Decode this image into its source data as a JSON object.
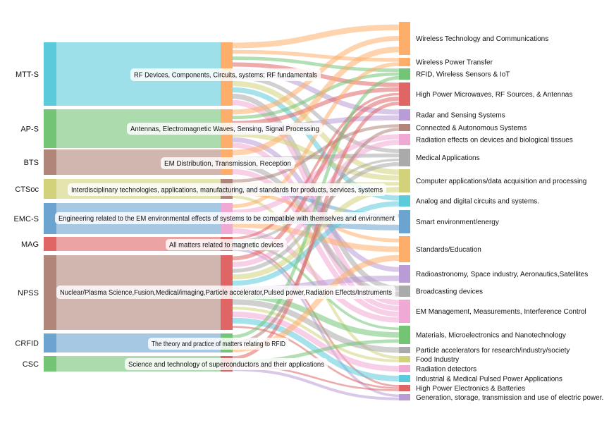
{
  "sources": [
    {
      "key": "MTT-S",
      "label": "MTT-S",
      "desc": "RF Devices, Components, Circuits, systems; RF fundamentals",
      "color": "#5bcbdb"
    },
    {
      "key": "AP-S",
      "label": "AP-S",
      "desc": "Antennas, Electromagnetic Waves, Sensing, Signal Processing",
      "color": "#74c476"
    },
    {
      "key": "BTS",
      "label": "BTS",
      "desc": "EM Distribution, Transmission, Reception",
      "color": "#b0857a"
    },
    {
      "key": "CTSoc",
      "label": "CTSoc",
      "desc": "Interdisciplinary technologies, applications, manufacturing, and standards for products, services, systems",
      "color": "#d2d27a"
    },
    {
      "key": "EMC-S",
      "label": "EMC-S",
      "desc": "Engineering related to the EM environmental effects of systems to be compatible with themselves and environment",
      "color": "#6aa4cf"
    },
    {
      "key": "MAG",
      "label": "MAG",
      "desc": "All matters related to magnetic devices",
      "color": "#e06666"
    },
    {
      "key": "NPSS",
      "label": "NPSS",
      "desc": "Nuclear/Plasma Science,Fusion,Medical/imaging,Particle accelerator,Pulsed power,Radiation Effects/Instruments",
      "color": "#b0857a"
    },
    {
      "key": "CRFID",
      "label": "CRFID",
      "desc": "The theory and practice of matters relating to RFID",
      "color": "#6aa4cf"
    },
    {
      "key": "CSC",
      "label": "CSC",
      "desc": "Science and technology of superconductors and their applications",
      "color": "#74c476"
    }
  ],
  "targets": [
    {
      "label": "Wireless Technology and Communications",
      "color": "#fdae6b"
    },
    {
      "label": "Wireless Power Transfer",
      "color": "#fdae6b"
    },
    {
      "label": "RFID, Wireless Sensors & IoT",
      "color": "#74c476"
    },
    {
      "label": "High Power Microwaves, RF Sources, & Antennas",
      "color": "#e06666"
    },
    {
      "label": "Radar and Sensing Systems",
      "color": "#b99bd6"
    },
    {
      "label": "Connected & Autonomous Systems",
      "color": "#b0857a"
    },
    {
      "label": "Radiation effects on devices and biological tissues",
      "color": "#f0a8d4"
    },
    {
      "label": "Medical Applications",
      "color": "#aaaaaa"
    },
    {
      "label": "Computer applications/data acquisition and processing",
      "color": "#d2d27a"
    },
    {
      "label": "Analog and digital circuits and systems.",
      "color": "#5bcbdb"
    },
    {
      "label": "Smart environment/energy",
      "color": "#6aa4cf"
    },
    {
      "label": "Standards/Education",
      "color": "#fdae6b"
    },
    {
      "label": "Radioastronomy, Space industry, Aeronautics,Satellites",
      "color": "#b99bd6"
    },
    {
      "label": "Broadcasting devices",
      "color": "#aaaaaa"
    },
    {
      "label": "EM Management, Measurements, Interference Control",
      "color": "#f0a8d4"
    },
    {
      "label": "Materials, Microelectronics and Nanotechnology",
      "color": "#74c476"
    },
    {
      "label": "Particle accelerators for research/industry/society",
      "color": "#aaaaaa"
    },
    {
      "label": "Food Industry",
      "color": "#d2d27a"
    },
    {
      "label": "Radiation detectors",
      "color": "#f0a8d4"
    },
    {
      "label": "Industrial & Medical Pulsed Power Applications",
      "color": "#5bcbdb"
    },
    {
      "label": "High Power Electronics & Batteries",
      "color": "#e06666"
    },
    {
      "label": "Generation, storage, transmission and use of electric power.",
      "color": "#b99bd6"
    }
  ],
  "links": [
    {
      "s": 0,
      "t": 0,
      "c": "#fdae6b"
    },
    {
      "s": 0,
      "t": 1,
      "c": "#fdae6b"
    },
    {
      "s": 0,
      "t": 2,
      "c": "#74c476"
    },
    {
      "s": 0,
      "t": 3,
      "c": "#e06666"
    },
    {
      "s": 0,
      "t": 4,
      "c": "#b99bd6"
    },
    {
      "s": 0,
      "t": 7,
      "c": "#aaaaaa"
    },
    {
      "s": 0,
      "t": 8,
      "c": "#d2d27a"
    },
    {
      "s": 0,
      "t": 9,
      "c": "#5bcbdb"
    },
    {
      "s": 0,
      "t": 13,
      "c": "#aaaaaa"
    },
    {
      "s": 0,
      "t": 14,
      "c": "#f0a8d4"
    },
    {
      "s": 1,
      "t": 0,
      "c": "#fdae6b"
    },
    {
      "s": 1,
      "t": 2,
      "c": "#74c476"
    },
    {
      "s": 1,
      "t": 3,
      "c": "#e06666"
    },
    {
      "s": 1,
      "t": 4,
      "c": "#b99bd6"
    },
    {
      "s": 1,
      "t": 8,
      "c": "#d2d27a"
    },
    {
      "s": 1,
      "t": 12,
      "c": "#b99bd6"
    },
    {
      "s": 1,
      "t": 14,
      "c": "#f0a8d4"
    },
    {
      "s": 2,
      "t": 0,
      "c": "#fdae6b"
    },
    {
      "s": 2,
      "t": 7,
      "c": "#aaaaaa"
    },
    {
      "s": 2,
      "t": 13,
      "c": "#aaaaaa"
    },
    {
      "s": 2,
      "t": 14,
      "c": "#f0a8d4"
    },
    {
      "s": 3,
      "t": 5,
      "c": "#b0857a"
    },
    {
      "s": 3,
      "t": 8,
      "c": "#d2d27a"
    },
    {
      "s": 3,
      "t": 10,
      "c": "#6aa4cf"
    },
    {
      "s": 3,
      "t": 11,
      "c": "#fdae6b"
    },
    {
      "s": 3,
      "t": 17,
      "c": "#d2d27a"
    },
    {
      "s": 4,
      "t": 6,
      "c": "#f0a8d4"
    },
    {
      "s": 4,
      "t": 10,
      "c": "#6aa4cf"
    },
    {
      "s": 4,
      "t": 11,
      "c": "#fdae6b"
    },
    {
      "s": 4,
      "t": 14,
      "c": "#f0a8d4"
    },
    {
      "s": 4,
      "t": 1,
      "c": "#fdae6b"
    },
    {
      "s": 5,
      "t": 3,
      "c": "#e06666"
    },
    {
      "s": 5,
      "t": 7,
      "c": "#aaaaaa"
    },
    {
      "s": 5,
      "t": 15,
      "c": "#74c476"
    },
    {
      "s": 5,
      "t": 20,
      "c": "#e06666"
    },
    {
      "s": 5,
      "t": 21,
      "c": "#b99bd6"
    },
    {
      "s": 6,
      "t": 3,
      "c": "#e06666"
    },
    {
      "s": 6,
      "t": 6,
      "c": "#f0a8d4"
    },
    {
      "s": 6,
      "t": 7,
      "c": "#aaaaaa"
    },
    {
      "s": 6,
      "t": 8,
      "c": "#d2d27a"
    },
    {
      "s": 6,
      "t": 9,
      "c": "#5bcbdb"
    },
    {
      "s": 6,
      "t": 12,
      "c": "#b99bd6"
    },
    {
      "s": 6,
      "t": 15,
      "c": "#74c476"
    },
    {
      "s": 6,
      "t": 16,
      "c": "#aaaaaa"
    },
    {
      "s": 6,
      "t": 17,
      "c": "#d2d27a"
    },
    {
      "s": 6,
      "t": 18,
      "c": "#f0a8d4"
    },
    {
      "s": 6,
      "t": 19,
      "c": "#5bcbdb"
    },
    {
      "s": 6,
      "t": 20,
      "c": "#e06666"
    },
    {
      "s": 7,
      "t": 2,
      "c": "#74c476"
    },
    {
      "s": 7,
      "t": 5,
      "c": "#b0857a"
    },
    {
      "s": 7,
      "t": 11,
      "c": "#fdae6b"
    },
    {
      "s": 8,
      "t": 3,
      "c": "#e06666"
    },
    {
      "s": 8,
      "t": 15,
      "c": "#74c476"
    },
    {
      "s": 8,
      "t": 20,
      "c": "#e06666"
    },
    {
      "s": 8,
      "t": 21,
      "c": "#b99bd6"
    }
  ]
}
